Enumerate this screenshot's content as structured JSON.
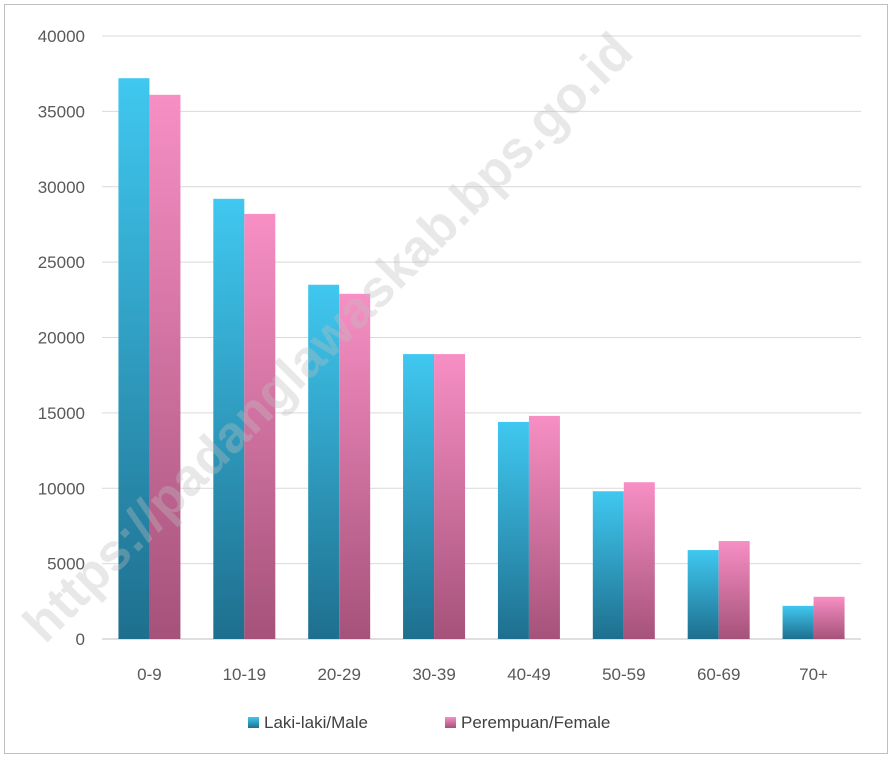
{
  "chart_data": {
    "type": "bar",
    "categories": [
      "0-9",
      "10-19",
      "20-29",
      "30-39",
      "40-49",
      "50-59",
      "60-69",
      "70+"
    ],
    "series": [
      {
        "name": "Laki-laki/Male",
        "values": [
          37200,
          29200,
          23500,
          18900,
          14400,
          9800,
          5900,
          2200
        ],
        "color": "#2bb2df"
      },
      {
        "name": "Perempuan/Female",
        "values": [
          36100,
          28200,
          22900,
          18900,
          14800,
          10400,
          6500,
          2800
        ],
        "color": "#e8799f"
      }
    ],
    "title": "",
    "xlabel": "",
    "ylabel": "",
    "ylim": [
      0,
      40000
    ],
    "yticks": [
      "0",
      "5000",
      "10000",
      "15000",
      "20000",
      "25000",
      "30000",
      "35000",
      "40000"
    ],
    "grid": true,
    "legend_position": "bottom"
  },
  "watermark": "https://padanglawaskab.bps.go.id"
}
